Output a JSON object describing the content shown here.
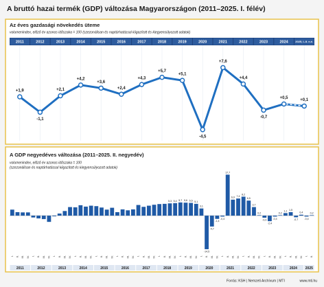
{
  "header": {
    "title": "A bruttó hazai termék (GDP) változása Magyarországon (2011–2025. I. félév)"
  },
  "chart_data": [
    {
      "type": "line",
      "title": "Az éves gazdasági növekedés üteme",
      "subtitle": "volumenindex, előző év azonos időszaka = 100 (szezonálisan és naptárhatással kiigazított és kiegyensúlyozott adatok)",
      "categories": [
        "2011",
        "2012",
        "2013",
        "2014",
        "2015",
        "2016",
        "2017",
        "2018",
        "2019",
        "2020",
        "2021",
        "2022",
        "2023",
        "2024",
        "2025, I–II. n.é."
      ],
      "values": [
        1.9,
        -1.1,
        2.1,
        4.2,
        3.6,
        2.4,
        4.3,
        5.7,
        5.1,
        -4.5,
        7.6,
        4.4,
        -0.7,
        0.5,
        0.1
      ],
      "value_labels": [
        "+1,9",
        "-1,1",
        "+2,1",
        "+4,2",
        "+3,6",
        "+2,4",
        "+4,3",
        "+5,7",
        "+5,1",
        "-4,5",
        "+7,6",
        "+4,4",
        "-0,7",
        "+0,5",
        "+0,1"
      ],
      "color": "#1f6fc1",
      "ylim": [
        -6,
        9
      ]
    },
    {
      "type": "bar",
      "title": "A GDP negyedéves változása (2011–2025. II. negyedév)",
      "subtitle": [
        "volumenindex, előző év azonos időszaka = 100",
        "(szezonálisan és naptárhatással kiigazított és kiegyensúlyozott adatok)"
      ],
      "groups": [
        "2011",
        "2012",
        "2013",
        "2014",
        "2015",
        "2016",
        "2017",
        "2018",
        "2019",
        "2020",
        "2021",
        "2022",
        "2023",
        "2024",
        "2025"
      ],
      "categories": [
        "I.",
        "II.",
        "III.",
        "IV.",
        "I.",
        "II.",
        "III.",
        "IV.",
        "I.",
        "II.",
        "III.",
        "IV.",
        "I.",
        "II.",
        "III.",
        "IV.",
        "I.",
        "II.",
        "III.",
        "IV.",
        "I.",
        "II.",
        "III.",
        "IV.",
        "I.",
        "II.",
        "III.",
        "IV.",
        "I.",
        "II.",
        "III.",
        "IV.",
        "I.",
        "II.",
        "III.",
        "IV.",
        "I.",
        "II.",
        "III.",
        "IV.",
        "I.",
        "II.",
        "III.",
        "IV.",
        "I.",
        "II.",
        "III.",
        "IV.",
        "I.",
        "II.",
        "III.",
        "IV.",
        "I.",
        "II.",
        "III.",
        "IV.",
        "I.",
        "II."
      ],
      "values": [
        2.6,
        1.5,
        1.4,
        1.4,
        -0.8,
        -1.2,
        -1.5,
        -2.7,
        -0.3,
        0.9,
        2.0,
        3.7,
        3.6,
        4.5,
        3.9,
        4.3,
        4.1,
        3.5,
        2.6,
        3.4,
        1.5,
        2.7,
        2.3,
        2.7,
        4.6,
        3.8,
        4.3,
        4.7,
        5.0,
        5.1,
        5.3,
        5.4,
        5.7,
        5.6,
        5.5,
        5.1,
        3.1,
        -14.5,
        -4.7,
        -1.4,
        -0.4,
        17.7,
        6.9,
        7.4,
        8.2,
        6.5,
        3.7,
        0.2,
        -0.9,
        -2.4,
        -0.4,
        0.2,
        1.1,
        1.5,
        -0.7,
        0.4,
        -0.4,
        0.2
      ],
      "value_labels": [
        null,
        null,
        null,
        null,
        null,
        null,
        null,
        null,
        null,
        null,
        null,
        null,
        null,
        null,
        null,
        null,
        null,
        null,
        null,
        null,
        null,
        null,
        null,
        null,
        null,
        null,
        null,
        null,
        null,
        null,
        "5,3",
        "5,4",
        "5,7",
        "5,6",
        "5,5",
        "5,1",
        "3,1",
        "-14,5",
        "-4,7",
        "-1,4",
        "-0,4",
        "17,7",
        "6,9",
        "7,4",
        "8,2",
        "6,5",
        "3,7",
        "0,2",
        "-0,9",
        "-2,4",
        "-0,4",
        "0,2",
        "1,1",
        "1,5",
        "-0,7",
        "0,4",
        "-0,4",
        "0,2"
      ],
      "color": "#1f5aa6",
      "ylim": [
        -16,
        19
      ]
    }
  ],
  "footer": {
    "source": "Forrás: KSH | Nemzeti Archívum | MTI",
    "site": "www.mti.hu"
  }
}
